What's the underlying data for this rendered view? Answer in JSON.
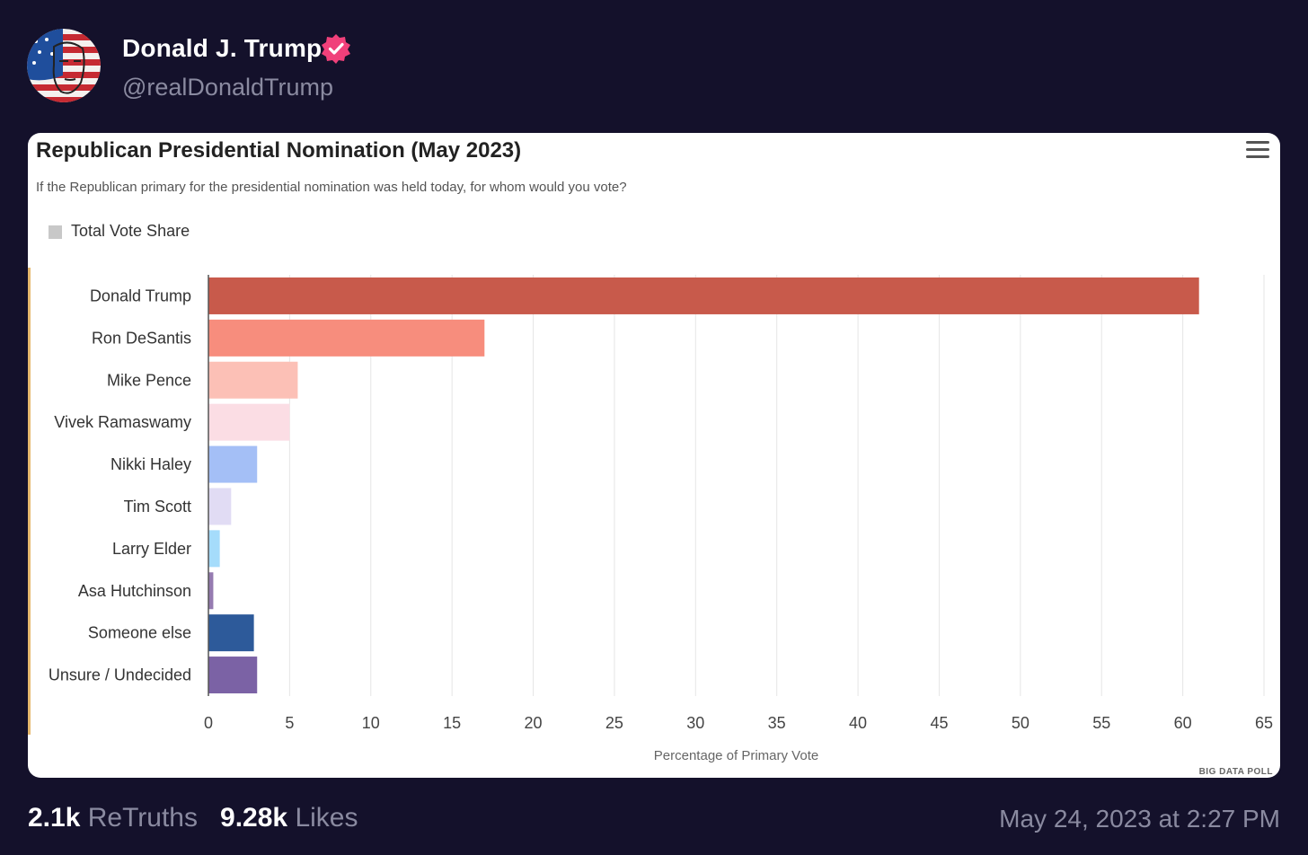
{
  "post": {
    "display_name": "Donald J. Trump",
    "handle": "@realDonaldTrump",
    "verified": true,
    "verified_icon": "verified-badge-icon",
    "retruths_count": "2.1k",
    "retruths_label": "ReTruths",
    "likes_count": "9.28k",
    "likes_label": "Likes",
    "timestamp": "May 24, 2023 at 2:27 PM"
  },
  "card": {
    "menu_icon": "hamburger-menu-icon",
    "watermark": "BIG DATA POLL"
  },
  "colors": {
    "background": "#14112b",
    "verified": "#f0407a"
  },
  "chart_data": {
    "type": "bar",
    "orientation": "horizontal",
    "title": "Republican Presidential Nomination (May 2023)",
    "subtitle": "If the Republican primary for the presidential nomination was held today, for whom would you vote?",
    "legend": [
      "Total Vote Share"
    ],
    "legend_placement": "top-left",
    "xlabel": "Percentage of Primary Vote",
    "ylabel": "",
    "xlim": [
      0,
      65
    ],
    "xticks": [
      0,
      5,
      10,
      15,
      20,
      25,
      30,
      35,
      40,
      45,
      50,
      55,
      60,
      65
    ],
    "grid": true,
    "categories": [
      "Donald Trump",
      "Ron DeSantis",
      "Mike Pence",
      "Vivek Ramaswamy",
      "Nikki Haley",
      "Tim Scott",
      "Larry Elder",
      "Asa Hutchinson",
      "Someone else",
      "Unsure / Undecided"
    ],
    "series": [
      {
        "name": "Total Vote Share",
        "values": [
          61.0,
          17.0,
          5.5,
          5.0,
          3.0,
          1.4,
          0.7,
          0.3,
          2.8,
          3.0
        ],
        "colors": [
          "#c85a4b",
          "#f78d7d",
          "#fcc0b6",
          "#fbdde4",
          "#a4bff6",
          "#e1dcf4",
          "#a5dcfb",
          "#957bb0",
          "#2d5a9a",
          "#7b62a5"
        ]
      }
    ]
  }
}
